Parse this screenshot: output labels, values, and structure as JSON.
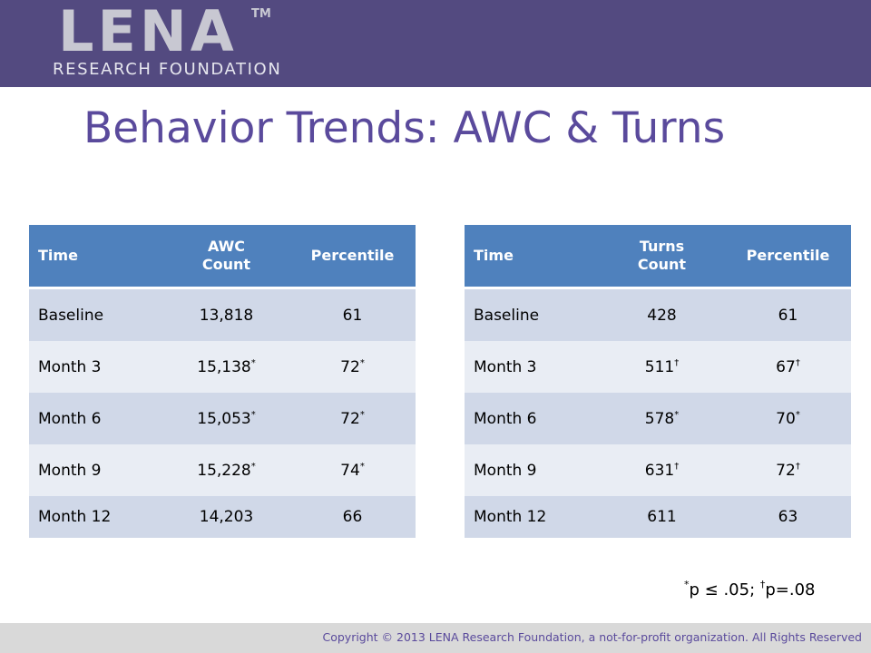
{
  "header": {
    "logo_text": "LENA",
    "logo_tm": "TM",
    "logo_subtitle": "RESEARCH FOUNDATION",
    "background_color": "#534a80"
  },
  "title": "Behavior Trends: AWC & Turns",
  "awc_table": {
    "headers": [
      "Time",
      "AWC\nCount",
      "Percentile"
    ],
    "rows": [
      {
        "time": "Baseline",
        "count": "13,818",
        "count_mark": "",
        "percentile": "61",
        "percentile_mark": ""
      },
      {
        "time": "Month 3",
        "count": "15,138",
        "count_mark": "*",
        "percentile": "72",
        "percentile_mark": "*"
      },
      {
        "time": "Month 6",
        "count": "15,053",
        "count_mark": "*",
        "percentile": "72",
        "percentile_mark": "*"
      },
      {
        "time": "Month 9",
        "count": "15,228",
        "count_mark": "*",
        "percentile": "74",
        "percentile_mark": "*"
      },
      {
        "time": "Month 12",
        "count": "14,203",
        "count_mark": "",
        "percentile": "66",
        "percentile_mark": ""
      }
    ]
  },
  "turns_table": {
    "headers": [
      "Time",
      "Turns\nCount",
      "Percentile"
    ],
    "rows": [
      {
        "time": "Baseline",
        "count": "428",
        "count_mark": "",
        "percentile": "61",
        "percentile_mark": ""
      },
      {
        "time": "Month 3",
        "count": "511",
        "count_mark": "†",
        "percentile": "67",
        "percentile_mark": "†"
      },
      {
        "time": "Month 6",
        "count": "578",
        "count_mark": "*",
        "percentile": "70",
        "percentile_mark": "*"
      },
      {
        "time": "Month 9",
        "count": "631",
        "count_mark": "†",
        "percentile": "72",
        "percentile_mark": "†"
      },
      {
        "time": "Month 12",
        "count": "611",
        "count_mark": "",
        "percentile": "63",
        "percentile_mark": ""
      }
    ]
  },
  "footnote": {
    "mark1": "*",
    "text1": "p ≤ .05; ",
    "mark2": "†",
    "text2": "p=.08"
  },
  "footer": {
    "copyright": "Copyright © 2013 LENA Research Foundation, a not-for-profit organization. All Rights Reserved"
  },
  "colors": {
    "table_header": "#4f81bd",
    "row_dark": "#d0d8e8",
    "row_light": "#e9edf4",
    "title": "#5a4a9c"
  }
}
